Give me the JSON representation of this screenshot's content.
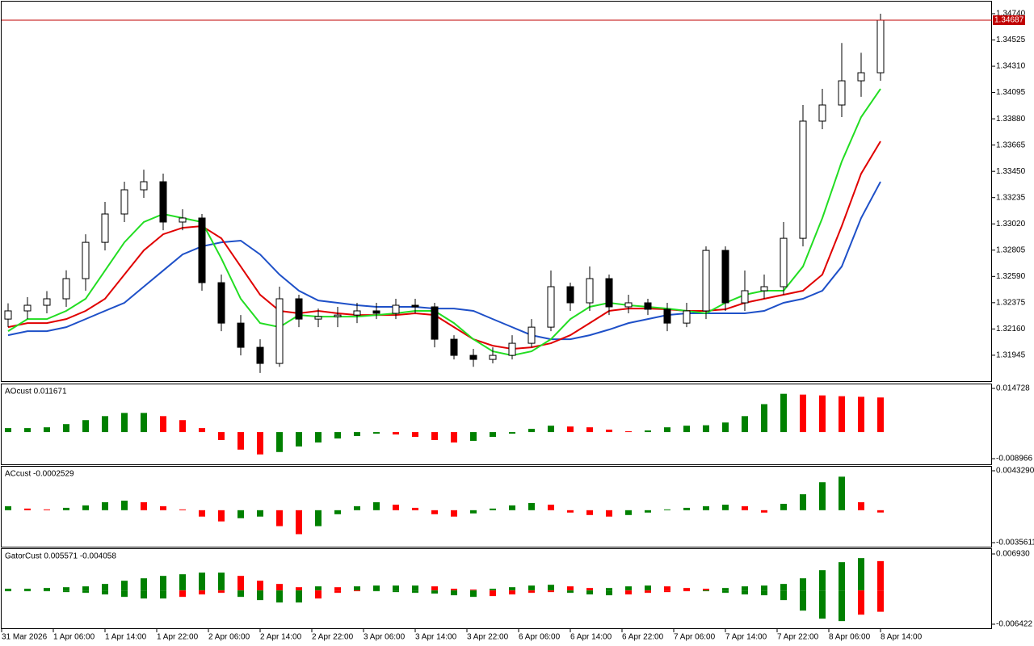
{
  "chart_data": [
    {
      "type": "candlestick",
      "x": [
        1,
        4,
        7,
        10,
        13,
        16,
        19,
        22,
        25,
        28,
        31,
        34,
        37,
        40,
        43,
        46,
        49,
        52,
        55,
        58,
        61,
        64,
        67,
        70,
        73,
        76,
        79,
        82,
        85,
        88,
        91,
        94,
        97,
        100,
        103,
        106,
        109,
        112,
        115,
        118,
        121,
        124,
        127,
        130,
        133,
        136
      ],
      "xlim": [
        0,
        153.25
      ],
      "xticks": [
        {
          "value": 0,
          "label": "31 Mar 2026"
        },
        {
          "value": 8,
          "label": "1 Apr 06:00"
        },
        {
          "value": 16,
          "label": "1 Apr 14:00"
        },
        {
          "value": 24,
          "label": "1 Apr 22:00"
        },
        {
          "value": 32,
          "label": "2 Apr 06:00"
        },
        {
          "value": 40,
          "label": "2 Apr 14:00"
        },
        {
          "value": 48,
          "label": "2 Apr 22:00"
        },
        {
          "value": 56,
          "label": "3 Apr 06:00"
        },
        {
          "value": 64,
          "label": "3 Apr 14:00"
        },
        {
          "value": 72,
          "label": "3 Apr 22:00"
        },
        {
          "value": 80,
          "label": "6 Apr 06:00"
        },
        {
          "value": 88,
          "label": "6 Apr 14:00"
        },
        {
          "value": 96,
          "label": "6 Apr 22:00"
        },
        {
          "value": 104,
          "label": "7 Apr 06:00"
        },
        {
          "value": 112,
          "label": "7 Apr 14:00"
        },
        {
          "value": 120,
          "label": "7 Apr 22:00"
        },
        {
          "value": 128,
          "label": "8 Apr 06:00"
        },
        {
          "value": 136,
          "label": "8 Apr 14:00"
        }
      ],
      "ylim": [
        1.31733,
        1.34839
      ],
      "yticks": [
        {
          "value": 1.3474,
          "label": "1.34740"
        },
        {
          "value": 1.34525,
          "label": "1.34525"
        },
        {
          "value": 1.3431,
          "label": "1.34310"
        },
        {
          "value": 1.34095,
          "label": "1.34095"
        },
        {
          "value": 1.3388,
          "label": "1.33880"
        },
        {
          "value": 1.33665,
          "label": "1.33665"
        },
        {
          "value": 1.3345,
          "label": "1.33450"
        },
        {
          "value": 1.33235,
          "label": "1.33235"
        },
        {
          "value": 1.3302,
          "label": "1.33020"
        },
        {
          "value": 1.32805,
          "label": "1.32805"
        },
        {
          "value": 1.3259,
          "label": "1.32590"
        },
        {
          "value": 1.32375,
          "label": "1.32375"
        },
        {
          "value": 1.3216,
          "label": "1.32160"
        },
        {
          "value": 1.31945,
          "label": "1.31945"
        }
      ],
      "open": [
        1.32241,
        1.32308,
        1.32354,
        1.32407,
        1.32572,
        1.32869,
        1.33101,
        1.33299,
        1.33365,
        1.33035,
        1.33068,
        1.32539,
        1.32208,
        1.3201,
        1.31878,
        1.32407,
        1.32241,
        1.32261,
        1.32274,
        1.32308,
        1.32288,
        1.32354,
        1.32341,
        1.32076,
        1.31944,
        1.31911,
        1.31944,
        1.32043,
        1.32175,
        1.32506,
        1.32374,
        1.32572,
        1.32341,
        1.32374,
        1.32321,
        1.32208,
        1.32308,
        1.32803,
        1.32374,
        1.32473,
        1.32506,
        1.32902,
        1.33861,
        1.33993,
        1.34191,
        1.34257
      ],
      "high": [
        1.3237,
        1.3242,
        1.3247,
        1.3264,
        1.32935,
        1.332,
        1.33365,
        1.33464,
        1.33431,
        1.3314,
        1.33101,
        1.32605,
        1.32274,
        1.32076,
        1.32506,
        1.3244,
        1.32327,
        1.32341,
        1.32374,
        1.32374,
        1.32407,
        1.32407,
        1.32374,
        1.32109,
        1.31997,
        1.3201,
        1.32109,
        1.32241,
        1.32638,
        1.32539,
        1.32671,
        1.32605,
        1.3244,
        1.32407,
        1.32374,
        1.32374,
        1.32836,
        1.32836,
        1.32638,
        1.32605,
        1.33035,
        1.33993,
        1.34125,
        1.345,
        1.3442,
        1.3474
      ],
      "low": [
        1.32175,
        1.32241,
        1.32288,
        1.32341,
        1.32473,
        1.32803,
        1.33035,
        1.33233,
        1.32968,
        1.32968,
        1.32473,
        1.32142,
        1.31944,
        1.318,
        1.3185,
        1.32175,
        1.32175,
        1.32175,
        1.32208,
        1.32241,
        1.32241,
        1.32288,
        1.3201,
        1.31911,
        1.3185,
        1.31878,
        1.31911,
        1.3201,
        1.32142,
        1.32308,
        1.32308,
        1.32274,
        1.32288,
        1.32274,
        1.32142,
        1.32175,
        1.32241,
        1.32308,
        1.32308,
        1.32407,
        1.3244,
        1.32836,
        1.33795,
        1.33894,
        1.3406,
        1.34191
      ],
      "close": [
        1.32308,
        1.32354,
        1.32407,
        1.32572,
        1.32869,
        1.33101,
        1.33299,
        1.33365,
        1.33035,
        1.33068,
        1.32539,
        1.32208,
        1.3201,
        1.31878,
        1.32407,
        1.32241,
        1.32261,
        1.32274,
        1.32308,
        1.32288,
        1.32354,
        1.32341,
        1.32076,
        1.31944,
        1.31911,
        1.31944,
        1.32043,
        1.32175,
        1.32506,
        1.32374,
        1.32572,
        1.32341,
        1.32374,
        1.32321,
        1.32208,
        1.32308,
        1.32803,
        1.32374,
        1.32473,
        1.32506,
        1.32902,
        1.33861,
        1.33993,
        1.34191,
        1.34257,
        1.34687
      ],
      "up_color": "#ffffff",
      "down_color": "#000000",
      "series": [
        {
          "color": "#1e50c8",
          "values": [
            1.32109,
            1.32142,
            1.32142,
            1.32175,
            1.32241,
            1.32308,
            1.32374,
            1.32506,
            1.32638,
            1.3277,
            1.32836,
            1.32869,
            1.32883,
            1.3277,
            1.32605,
            1.32473,
            1.32393,
            1.32374,
            1.32354,
            1.32341,
            1.32341,
            1.32341,
            1.32327,
            1.32327,
            1.32308,
            1.32241,
            1.32175,
            1.32109,
            1.32076,
            1.32076,
            1.32109,
            1.32155,
            1.32208,
            1.32241,
            1.32274,
            1.32288,
            1.32288,
            1.32288,
            1.32288,
            1.32308,
            1.32374,
            1.32407,
            1.32473,
            1.32671,
            1.33068,
            1.33365
          ]
        },
        {
          "color": "#e00000",
          "values": [
            1.32175,
            1.32208,
            1.32208,
            1.32241,
            1.32308,
            1.32407,
            1.32605,
            1.32803,
            1.32935,
            1.32988,
            1.33002,
            1.32902,
            1.32671,
            1.3244,
            1.32308,
            1.32288,
            1.32308,
            1.32288,
            1.32274,
            1.32274,
            1.32274,
            1.32288,
            1.32274,
            1.32175,
            1.32076,
            1.32023,
            1.31997,
            1.3201,
            1.32043,
            1.32109,
            1.32208,
            1.32308,
            1.32327,
            1.32327,
            1.32321,
            1.32308,
            1.32308,
            1.32321,
            1.32374,
            1.32407,
            1.3244,
            1.32473,
            1.32605,
            1.33002,
            1.33431,
            1.33696
          ]
        },
        {
          "color": "#22dd22",
          "values": [
            1.32142,
            1.32241,
            1.32241,
            1.32308,
            1.32407,
            1.32638,
            1.32869,
            1.33035,
            1.33101,
            1.33068,
            1.33035,
            1.32737,
            1.32407,
            1.32208,
            1.32175,
            1.32274,
            1.32261,
            1.32261,
            1.32261,
            1.32274,
            1.32288,
            1.32308,
            1.32308,
            1.32208,
            1.32076,
            1.31977,
            1.31944,
            1.31977,
            1.32076,
            1.32241,
            1.32341,
            1.32374,
            1.32354,
            1.32341,
            1.32327,
            1.32308,
            1.32288,
            1.32374,
            1.3244,
            1.32473,
            1.32473,
            1.32671,
            1.33068,
            1.3353,
            1.33894,
            1.34125
          ]
        }
      ],
      "price_line": {
        "value": 1.34687,
        "label": "1.34687",
        "color": "#c00000"
      }
    },
    {
      "type": "histogram",
      "title": "AOcust 0.011671",
      "ylim": [
        -0.008966,
        0.014728
      ],
      "yticks": [
        0.014728,
        -0.008966
      ],
      "up_color": "#008000",
      "down_color": "#ff0000",
      "values": [
        0.00135,
        0.00135,
        0.00161,
        0.00269,
        0.00404,
        0.00538,
        0.00646,
        0.00646,
        0.00538,
        0.00404,
        0.00135,
        -0.00269,
        -0.00592,
        -0.00753,
        -0.00673,
        -0.00484,
        -0.0035,
        -0.00215,
        -0.00135,
        -0.00054,
        -0.00081,
        -0.00161,
        -0.00269,
        -0.0035,
        -0.00296,
        -0.00161,
        -0.00054,
        0.00108,
        0.00215,
        0.00188,
        0.00161,
        0.00081,
        0.00027,
        0.00054,
        0.00161,
        0.00215,
        0.0023,
        0.00323,
        0.00538,
        0.00942,
        0.01291,
        0.01264,
        0.01237,
        0.0121,
        0.0119,
        0.011671
      ]
    },
    {
      "type": "histogram",
      "title": "ACcust -0.0002529",
      "ylim": [
        -0.0035611,
        0.004329
      ],
      "yticks": [
        {
          "value": 0.004329,
          "label": "0.0043290"
        },
        -0.0035611
      ],
      "up_color": "#008000",
      "down_color": "#ff0000",
      "values": [
        0.00044,
        0.00018,
        9e-05,
        0.00026,
        0.00053,
        0.00088,
        0.00105,
        0.00088,
        0.00044,
        9e-05,
        -0.0007,
        -0.00123,
        -0.00088,
        -0.0007,
        -0.00175,
        -0.00263,
        -0.00175,
        -0.00044,
        0.00044,
        0.00088,
        0.00061,
        0.00026,
        -0.00044,
        -0.0007,
        -0.00035,
        0.00018,
        0.00053,
        0.00079,
        0.00061,
        -0.00026,
        -0.00053,
        -0.0007,
        -0.00053,
        -0.00026,
        9e-05,
        0.00026,
        0.00044,
        0.00061,
        0.00044,
        -0.00026,
        0.0007,
        0.00175,
        0.00307,
        0.00368,
        0.00088,
        -0.0002529
      ]
    },
    {
      "type": "gator",
      "title": "GatorCust 0.005571 -0.004058",
      "ylim": [
        -0.006422,
        0.00693
      ],
      "yticks": [
        {
          "value": 0.00693,
          "label": "0.006930"
        },
        -0.006422
      ],
      "up_color": "#008000",
      "down_color": "#ff0000",
      "series": [
        {
          "values": [
            0.00031,
            0.00031,
            0.00046,
            0.00061,
            0.00077,
            0.00123,
            0.00184,
            0.0023,
            0.00276,
            0.00307,
            0.00338,
            0.00338,
            0.00276,
            0.00184,
            0.00123,
            0.00061,
            0.00077,
            0.00061,
            0.00077,
            0.00092,
            0.00092,
            0.00092,
            0.00077,
            0.00031,
            0.00015,
            0.00031,
            0.00061,
            0.00092,
            0.00107,
            0.00077,
            0.00046,
            0.00046,
            0.00077,
            0.00092,
            0.00077,
            0.00046,
            0.00031,
            0.00046,
            0.00077,
            0.00092,
            0.00123,
            0.0023,
            0.00384,
            0.00537,
            0.00614,
            0.005571
          ]
        },
        {
          "values": [
            -0.00015,
            -0.00015,
            -0.00015,
            -0.00031,
            -0.00046,
            -0.00077,
            -0.00123,
            -0.00154,
            -0.00154,
            -0.00123,
            -0.00077,
            -0.00046,
            -0.00123,
            -0.00184,
            -0.0023,
            -0.0023,
            -0.00154,
            -0.00046,
            -0.00015,
            -0.00015,
            -0.00031,
            -0.00046,
            -0.00061,
            -0.00092,
            -0.00123,
            -0.00107,
            -0.00077,
            -0.00046,
            -0.00031,
            -0.00046,
            -0.00077,
            -0.00092,
            -0.00077,
            -0.00046,
            -0.00031,
            -0.00015,
            -0.00015,
            -0.00046,
            -0.00077,
            -0.00092,
            -0.00184,
            -0.00384,
            -0.00537,
            -0.00583,
            -0.00461,
            -0.004058
          ]
        }
      ]
    }
  ]
}
